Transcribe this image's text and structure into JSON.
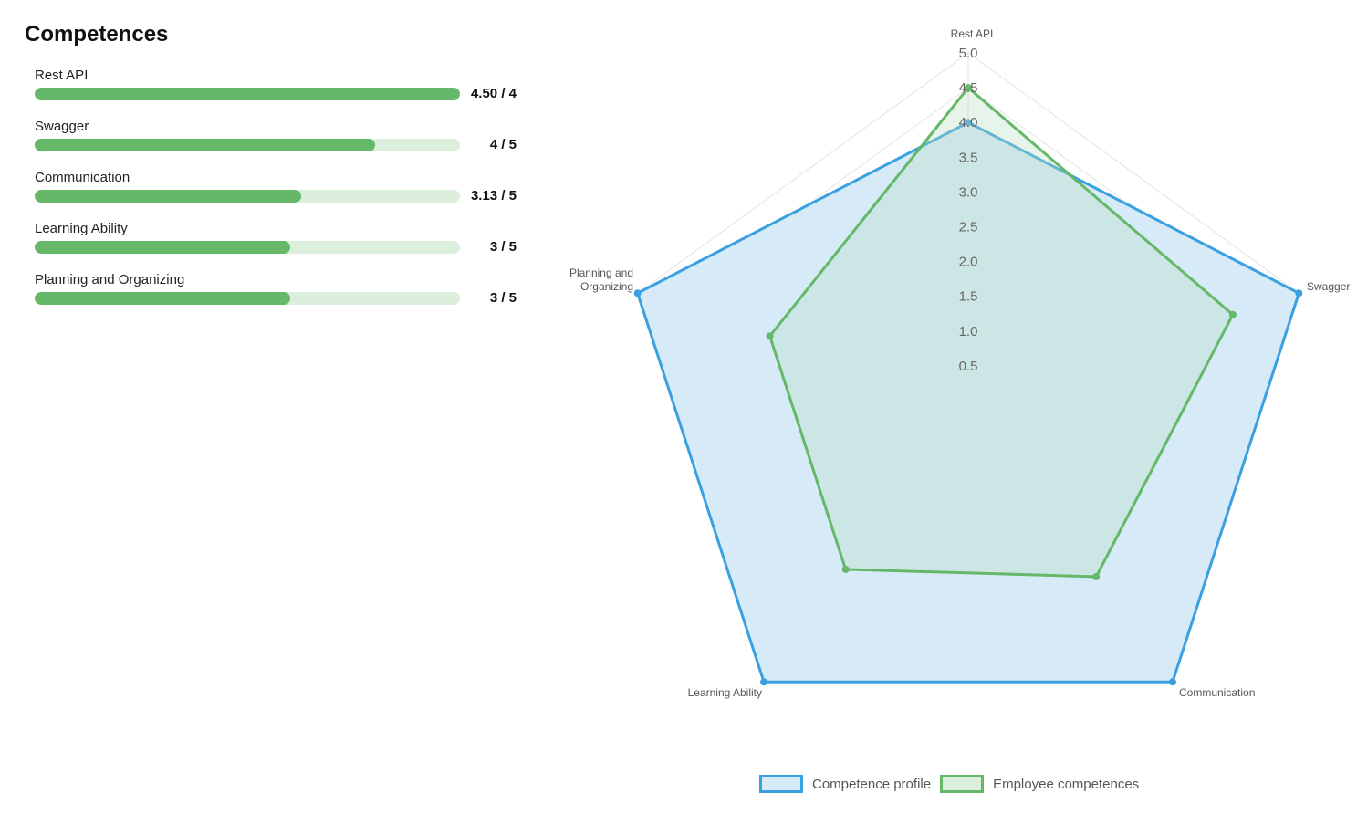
{
  "panel": {
    "title": "Competences",
    "items": [
      {
        "label": "Rest API",
        "score_text": "4.50 / 4",
        "fraction": 1.0
      },
      {
        "label": "Swagger",
        "score_text": "4 / 5",
        "fraction": 0.8
      },
      {
        "label": "Communication",
        "score_text": "3.13 / 5",
        "fraction": 0.626
      },
      {
        "label": "Learning Ability",
        "score_text": "3 / 5",
        "fraction": 0.6
      },
      {
        "label": "Planning and Organizing",
        "score_text": "3 / 5",
        "fraction": 0.6
      }
    ]
  },
  "colors": {
    "bar_fill": "#64b867",
    "bar_track": "#dcefdc",
    "profile_line": "#3aa0e0",
    "profile_fill": "#d6eaf8",
    "employee_line": "#64b867",
    "employee_fill": "#b8dfc0",
    "grid": "#e3e3e3",
    "tick_text": "#666666",
    "axis_label_text": "#555555"
  },
  "chart_data": {
    "type": "radar",
    "axes": [
      "Rest API",
      "Swagger",
      "Communication",
      "Learning Ability",
      "Planning and Organizing"
    ],
    "axis_label_lines": [
      [
        "Rest API"
      ],
      [
        "Swagger"
      ],
      [
        "Communication"
      ],
      [
        "Learning Ability"
      ],
      [
        "Planning and",
        "Organizing"
      ]
    ],
    "r_range": [
      0,
      5
    ],
    "r_ticks": [
      "0.5",
      "1.0",
      "1.5",
      "2.0",
      "2.5",
      "3.0",
      "3.5",
      "4.0",
      "4.5",
      "5.0"
    ],
    "series": [
      {
        "name": "Competence profile",
        "values": [
          4,
          5,
          5,
          5,
          5
        ]
      },
      {
        "name": "Employee competences",
        "values": [
          4.5,
          4,
          3.13,
          3,
          3
        ]
      }
    ],
    "legend": {
      "position": "bottom",
      "entries": [
        "Competence profile",
        "Employee competences"
      ]
    },
    "grid": true
  }
}
